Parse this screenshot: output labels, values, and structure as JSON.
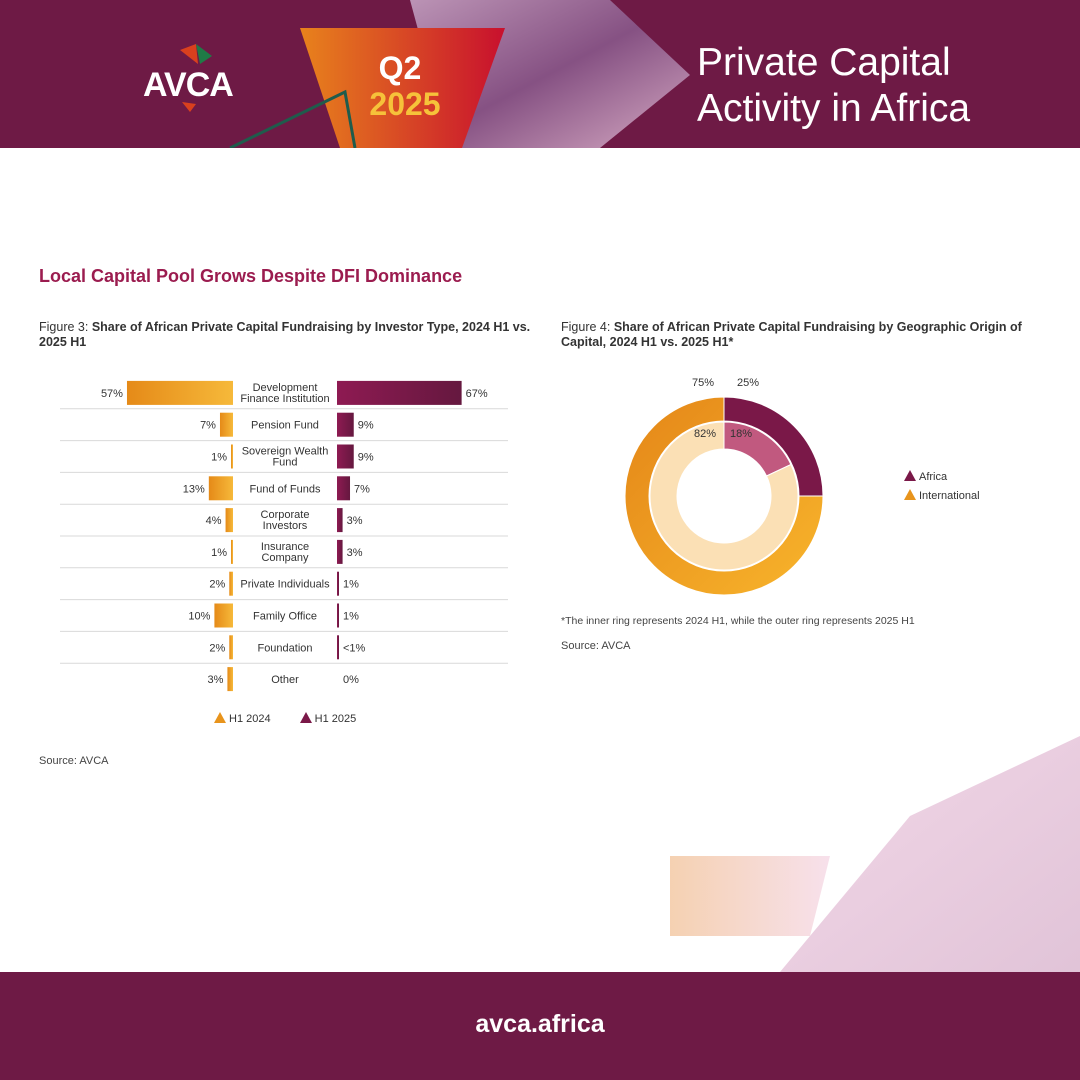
{
  "header": {
    "logo_text": "AVCA",
    "quarter": "Q2",
    "year": "2025",
    "title_line1": "Private Capital",
    "title_line2": "Activity in Africa"
  },
  "section_title": "Local Capital Pool Grows Despite DFI Dominance",
  "figure3": {
    "caption_prefix": "Figure 3: ",
    "caption_bold": "Share of African Private Capital Fundraising by Investor Type, 2024 H1 vs. 2025 H1",
    "source": "Source: AVCA"
  },
  "figure4": {
    "caption_prefix": "Figure 4: ",
    "caption_bold": "Share of African Private Capital Fundraising by Geographic Origin of Capital, 2024 H1 vs. 2025 H1*",
    "note": "*The inner ring represents 2024 H1, while the outer ring represents 2025 H1",
    "source": "Source: AVCA"
  },
  "colors": {
    "maroon": "#6e1a45",
    "h2025": "#7a1848",
    "h2024": "#e8941c",
    "accent_title": "#9b1c4f"
  },
  "chart_data": [
    {
      "type": "bar",
      "orientation": "horizontal-butterfly",
      "categories": [
        "Development Finance Institution",
        "Pension Fund",
        "Sovereign Wealth Fund",
        "Fund of Funds",
        "Corporate Investors",
        "Insurance Company",
        "Private Individuals",
        "Family Office",
        "Foundation",
        "Other"
      ],
      "series": [
        {
          "name": "H1 2024",
          "values": [
            57,
            7,
            1,
            13,
            4,
            1,
            2,
            10,
            2,
            3
          ],
          "labels": [
            "57%",
            "7%",
            "1%",
            "13%",
            "4%",
            "1%",
            "2%",
            "10%",
            "2%",
            "3%"
          ],
          "color": "#e8941c"
        },
        {
          "name": "H1 2025",
          "values": [
            67,
            9,
            9,
            7,
            3,
            3,
            1,
            1,
            0.5,
            0
          ],
          "labels": [
            "67%",
            "9%",
            "9%",
            "7%",
            "3%",
            "3%",
            "1%",
            "1%",
            "<1%",
            "0%"
          ],
          "color": "#7a1848"
        }
      ],
      "legend": "bottom"
    },
    {
      "type": "pie",
      "variant": "double-ring-donut",
      "categories": [
        "Africa",
        "International"
      ],
      "rings": [
        {
          "name": "2024 H1",
          "position": "inner",
          "values": [
            18,
            82
          ],
          "labels": [
            "18%",
            "82%"
          ]
        },
        {
          "name": "2025 H1",
          "position": "outer",
          "values": [
            25,
            75
          ],
          "labels": [
            "25%",
            "75%"
          ]
        }
      ],
      "colors": {
        "Africa": "#7a1848",
        "International": "#e8941c"
      },
      "legend": "right"
    }
  ],
  "footer": {
    "url": "avca.africa"
  }
}
